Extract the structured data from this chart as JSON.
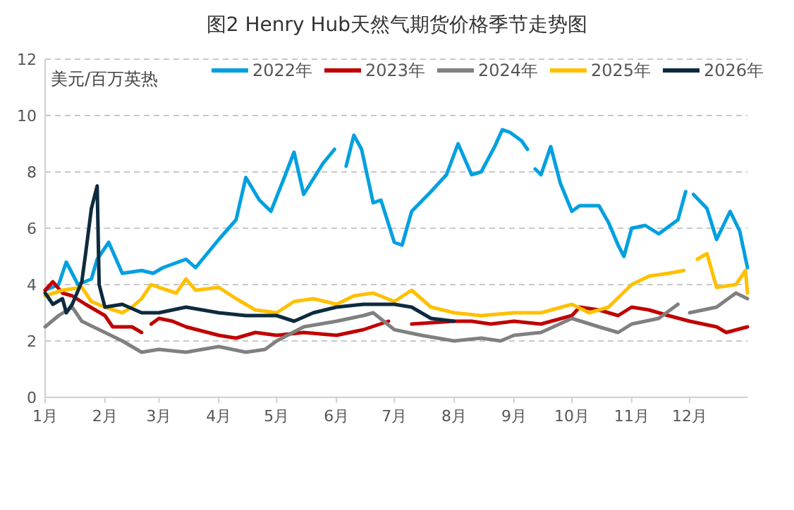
{
  "chart_data": {
    "type": "line",
    "title": "图2 Henry Hub天然气期货价格季节走势图",
    "ylabel": "美元/百万英热",
    "ylim": [
      0,
      12
    ],
    "yticks": [
      0,
      2,
      4,
      6,
      8,
      10,
      12
    ],
    "xlim": [
      "--01-01",
      "--12-31"
    ],
    "xticks": [
      {
        "value": "--01-01",
        "label": "1月"
      },
      {
        "value": "--02-01",
        "label": "2月"
      },
      {
        "value": "--03-01",
        "label": "3月"
      },
      {
        "value": "--04-01",
        "label": "4月"
      },
      {
        "value": "--05-01",
        "label": "5月"
      },
      {
        "value": "--06-01",
        "label": "6月"
      },
      {
        "value": "--07-01",
        "label": "7月"
      },
      {
        "value": "--08-01",
        "label": "8月"
      },
      {
        "value": "--09-01",
        "label": "9月"
      },
      {
        "value": "--10-01",
        "label": "10月"
      },
      {
        "value": "--11-01",
        "label": "11月"
      },
      {
        "value": "--12-01",
        "label": "12月"
      }
    ],
    "grid": "y",
    "legend": "top",
    "marker": "none",
    "line_style": "solid",
    "series": [
      {
        "name": "2022年",
        "color": "#00a0e0",
        "x": [
          "--01-01",
          "--01-08",
          "--01-12",
          "--01-18",
          "--01-25",
          "--01-28",
          "--02-03",
          "--02-10",
          "--02-20",
          "--02-26",
          "--03-03",
          "--03-15",
          "--03-20",
          "--04-01",
          "--04-10",
          "--04-15",
          "--04-22",
          "--04-28",
          "--05-05",
          "--05-10",
          "--05-15",
          "--05-25",
          "--05-31",
          "--06-02",
          "--06-06",
          "--06-10",
          "--06-14",
          "--06-20",
          "--06-24",
          "--07-01",
          "--07-05",
          "--07-10",
          "--07-20",
          "--07-28",
          "--08-03",
          "--08-10",
          "--08-15",
          "--08-22",
          "--08-26",
          "--08-30",
          "--09-05",
          "--09-08",
          "--09-10",
          "--09-12",
          "--09-15",
          "--09-20",
          "--09-25",
          "--10-01",
          "--10-05",
          "--10-15",
          "--10-20",
          "--10-25",
          "--10-28",
          "--11-01",
          "--11-08",
          "--11-15",
          "--11-25",
          "--11-29",
          "--12-01",
          "--12-03",
          "--12-10",
          "--12-15",
          "--12-22",
          "--12-27",
          "--12-31"
        ],
        "values": [
          3.8,
          4.0,
          4.8,
          4.0,
          4.2,
          4.9,
          5.5,
          4.4,
          4.5,
          4.4,
          4.6,
          4.9,
          4.6,
          5.6,
          6.3,
          7.8,
          7.0,
          6.6,
          7.8,
          8.7,
          7.2,
          8.3,
          8.8,
          null,
          8.2,
          9.3,
          8.8,
          6.9,
          7.0,
          5.5,
          5.4,
          6.6,
          7.3,
          7.9,
          9.0,
          7.9,
          8.0,
          8.9,
          9.5,
          9.4,
          9.1,
          8.8,
          null,
          8.1,
          7.9,
          8.9,
          7.6,
          6.6,
          6.8,
          6.8,
          6.2,
          5.4,
          5.0,
          6.0,
          6.1,
          5.8,
          6.3,
          7.3,
          null,
          7.2,
          6.7,
          5.6,
          6.6,
          5.9,
          4.6
        ]
      },
      {
        "name": "2023年",
        "color": "#c00000",
        "x": [
          "--01-01",
          "--01-05",
          "--01-10",
          "--01-15",
          "--01-22",
          "--02-01",
          "--02-05",
          "--02-15",
          "--02-20",
          "--02-22",
          "--02-25",
          "--03-01",
          "--03-08",
          "--03-15",
          "--04-01",
          "--04-10",
          "--04-20",
          "--05-01",
          "--05-15",
          "--06-01",
          "--06-15",
          "--06-28",
          "--07-01",
          "--07-10",
          "--08-01",
          "--08-10",
          "--08-20",
          "--09-01",
          "--09-15",
          "--10-01",
          "--10-05",
          "--10-15",
          "--10-25",
          "--11-01",
          "--11-10",
          "--11-20",
          "--12-01",
          "--12-15",
          "--12-20",
          "--12-31"
        ],
        "values": [
          3.8,
          4.1,
          3.7,
          3.6,
          3.3,
          2.9,
          2.5,
          2.5,
          2.3,
          null,
          2.6,
          2.8,
          2.7,
          2.5,
          2.2,
          2.1,
          2.3,
          2.2,
          2.3,
          2.2,
          2.4,
          2.7,
          null,
          2.6,
          2.7,
          2.7,
          2.6,
          2.7,
          2.6,
          2.9,
          3.2,
          3.1,
          2.9,
          3.2,
          3.1,
          2.9,
          2.7,
          2.5,
          2.3,
          2.5
        ]
      },
      {
        "name": "2024年",
        "color": "#808080",
        "x": [
          "--01-01",
          "--01-08",
          "--01-15",
          "--01-20",
          "--02-01",
          "--02-10",
          "--02-20",
          "--03-01",
          "--03-15",
          "--04-01",
          "--04-15",
          "--04-25",
          "--05-01",
          "--05-15",
          "--06-01",
          "--06-15",
          "--06-20",
          "--07-01",
          "--07-15",
          "--08-01",
          "--08-15",
          "--08-25",
          "--09-01",
          "--09-15",
          "--10-01",
          "--10-15",
          "--10-25",
          "--11-01",
          "--11-15",
          "--11-25",
          "--11-28",
          "--12-01",
          "--12-15",
          "--12-25",
          "--12-31"
        ],
        "values": [
          2.5,
          2.9,
          3.2,
          2.7,
          2.3,
          2.0,
          1.6,
          1.7,
          1.6,
          1.8,
          1.6,
          1.7,
          2.0,
          2.5,
          2.7,
          2.9,
          3.0,
          2.4,
          2.2,
          2.0,
          2.1,
          2.0,
          2.2,
          2.3,
          2.8,
          2.5,
          2.3,
          2.6,
          2.8,
          3.3,
          null,
          3.0,
          3.2,
          3.7,
          3.5
        ]
      },
      {
        "name": "2025年",
        "color": "#ffc000",
        "x": [
          "--01-01",
          "--01-10",
          "--01-20",
          "--01-25",
          "--02-01",
          "--02-10",
          "--02-15",
          "--02-20",
          "--02-25",
          "--03-01",
          "--03-10",
          "--03-15",
          "--03-20",
          "--04-01",
          "--04-10",
          "--04-20",
          "--05-01",
          "--05-10",
          "--05-20",
          "--06-01",
          "--06-10",
          "--06-20",
          "--07-01",
          "--07-10",
          "--07-20",
          "--08-01",
          "--08-15",
          "--09-01",
          "--09-15",
          "--10-01",
          "--10-10",
          "--10-20",
          "--11-01",
          "--11-10",
          "--11-20",
          "--11-28",
          "--12-01",
          "--12-05",
          "--12-10",
          "--12-15",
          "--12-25",
          "--12-30",
          "--12-31"
        ],
        "values": [
          3.6,
          3.8,
          3.9,
          3.4,
          3.2,
          3.0,
          3.2,
          3.5,
          4.0,
          3.9,
          3.7,
          4.2,
          3.8,
          3.9,
          3.5,
          3.1,
          3.0,
          3.4,
          3.5,
          3.3,
          3.6,
          3.7,
          3.4,
          3.8,
          3.2,
          3.0,
          2.9,
          3.0,
          3.0,
          3.3,
          3.0,
          3.2,
          4.0,
          4.3,
          4.4,
          4.5,
          null,
          4.9,
          5.1,
          3.9,
          4.0,
          4.5,
          3.7
        ]
      },
      {
        "name": "2026年",
        "color": "#0d2b3e",
        "x": [
          "--01-01",
          "--01-05",
          "--01-10",
          "--01-12",
          "--01-15",
          "--01-20",
          "--01-22",
          "--01-25",
          "--01-28",
          "--01-29",
          "--02-01",
          "--02-10",
          "--02-20",
          "--03-01",
          "--03-15",
          "--04-01",
          "--04-15",
          "--05-01",
          "--05-10",
          "--05-20",
          "--06-01",
          "--06-15",
          "--07-01",
          "--07-10",
          "--07-20",
          "--08-01"
        ],
        "values": [
          3.7,
          3.3,
          3.5,
          3.0,
          3.3,
          4.1,
          5.1,
          6.7,
          7.5,
          4.0,
          3.2,
          3.3,
          3.0,
          3.0,
          3.2,
          3.0,
          2.9,
          2.9,
          2.7,
          3.0,
          3.2,
          3.3,
          3.3,
          3.2,
          2.8,
          2.7
        ]
      }
    ]
  }
}
